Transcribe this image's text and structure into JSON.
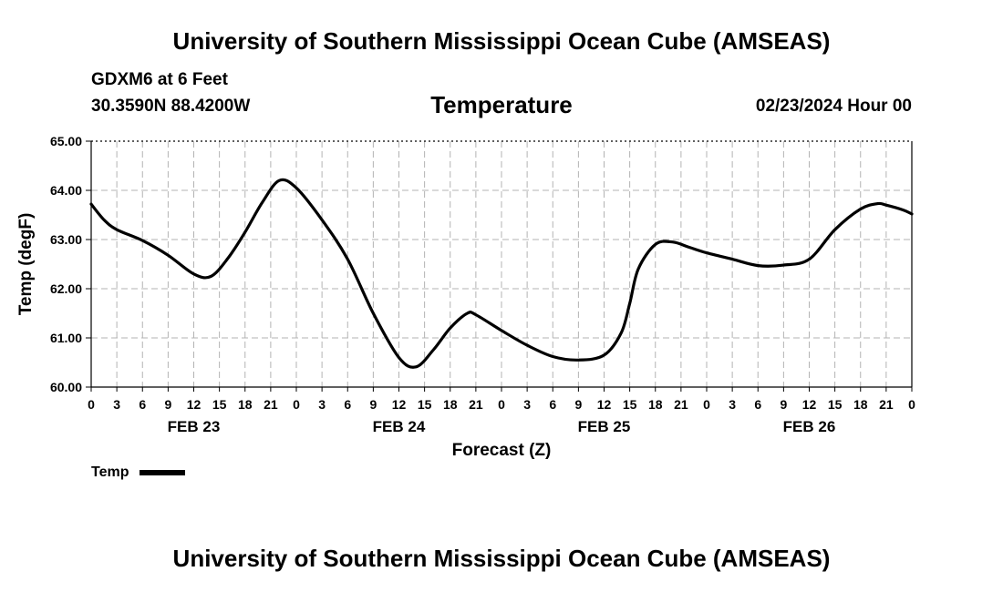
{
  "header": {
    "title": "University of Southern Mississippi Ocean Cube (AMSEAS)",
    "station": "GDXM6 at 6 Feet",
    "coords": "30.3590N  88.4200W",
    "date": "02/23/2024 Hour 00"
  },
  "footer": {
    "title": "University of Southern Mississippi Ocean Cube (AMSEAS)"
  },
  "chart_data": {
    "type": "line",
    "title": "Temperature",
    "xlabel": "Forecast (Z)",
    "ylabel": "Temp (degF)",
    "ylim": [
      60.0,
      65.0
    ],
    "xlim": [
      0,
      96
    ],
    "yticks": [
      "60.00",
      "61.00",
      "62.00",
      "63.00",
      "64.00",
      "65.00"
    ],
    "xtick_labels": [
      "0",
      "3",
      "6",
      "9",
      "12",
      "15",
      "18",
      "21",
      "0",
      "3",
      "6",
      "9",
      "12",
      "15",
      "18",
      "21",
      "0",
      "3",
      "6",
      "9",
      "12",
      "15",
      "18",
      "21",
      "0",
      "3",
      "6",
      "9",
      "12",
      "15",
      "18",
      "21",
      "0"
    ],
    "date_labels": [
      {
        "label": "FEB 23",
        "hour": 12
      },
      {
        "label": "FEB 24",
        "hour": 36
      },
      {
        "label": "FEB 25",
        "hour": 60
      },
      {
        "label": "FEB 26",
        "hour": 84
      }
    ],
    "grid": true,
    "series": [
      {
        "name": "Temp",
        "x": [
          0,
          1.5,
          3,
          6,
          9,
          12,
          14,
          16,
          18,
          20,
          22,
          24,
          27,
          30,
          33,
          36,
          38,
          40,
          42,
          44,
          45,
          48,
          51,
          54,
          57,
          60,
          62,
          63,
          64,
          66,
          68,
          70,
          72,
          75,
          78,
          81,
          84,
          87,
          90,
          92,
          93,
          95,
          96
        ],
        "y": [
          63.72,
          63.4,
          63.2,
          62.98,
          62.68,
          62.3,
          62.25,
          62.62,
          63.15,
          63.75,
          64.2,
          64.05,
          63.4,
          62.6,
          61.5,
          60.6,
          60.41,
          60.75,
          61.2,
          61.5,
          61.47,
          61.15,
          60.85,
          60.62,
          60.55,
          60.65,
          61.1,
          61.7,
          62.4,
          62.9,
          62.95,
          62.84,
          62.73,
          62.6,
          62.47,
          62.48,
          62.6,
          63.2,
          63.62,
          63.73,
          63.7,
          63.6,
          63.52
        ]
      }
    ],
    "legend": {
      "label": "Temp",
      "position": "bottom-left"
    }
  }
}
